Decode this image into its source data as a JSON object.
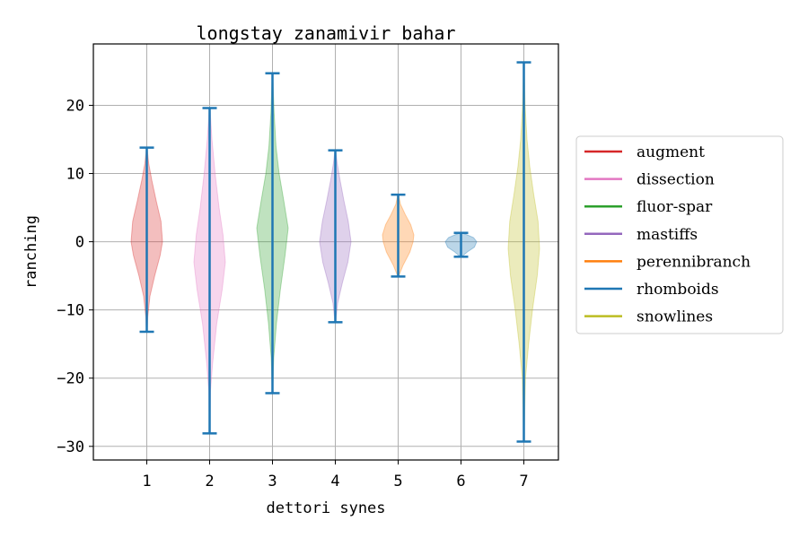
{
  "chart_data": {
    "type": "violin",
    "title": "longstay zanamivir bahar",
    "xlabel": "dettori synes",
    "ylabel": "ranching",
    "categories": [
      "1",
      "2",
      "3",
      "4",
      "5",
      "6",
      "7"
    ],
    "ylim": [
      -32,
      29
    ],
    "yticks": [
      -30,
      -20,
      -10,
      0,
      10,
      20
    ],
    "grid": true,
    "legend_position": "right",
    "series": [
      {
        "name": "augment",
        "color": "#d62728",
        "position": 1,
        "min": -13.2,
        "max": 13.8,
        "profile": [
          [
            -13.2,
            0.02
          ],
          [
            -11,
            0.06
          ],
          [
            -8,
            0.2
          ],
          [
            -5,
            0.5
          ],
          [
            -2,
            0.85
          ],
          [
            0,
            1.0
          ],
          [
            3,
            0.9
          ],
          [
            6,
            0.6
          ],
          [
            9,
            0.32
          ],
          [
            11.5,
            0.12
          ],
          [
            13.8,
            0.02
          ]
        ]
      },
      {
        "name": "dissection",
        "color": "#e377c2",
        "position": 2,
        "min": -28.1,
        "max": 19.6,
        "profile": [
          [
            -28.1,
            0.01
          ],
          [
            -22,
            0.05
          ],
          [
            -18,
            0.18
          ],
          [
            -12,
            0.45
          ],
          [
            -7,
            0.8
          ],
          [
            -3,
            1.0
          ],
          [
            1,
            0.85
          ],
          [
            5,
            0.6
          ],
          [
            10,
            0.35
          ],
          [
            15,
            0.15
          ],
          [
            19.6,
            0.02
          ]
        ]
      },
      {
        "name": "fluor-spar",
        "color": "#2ca02c",
        "position": 3,
        "min": -22.2,
        "max": 24.7,
        "profile": [
          [
            -22.2,
            0.01
          ],
          [
            -17,
            0.08
          ],
          [
            -12,
            0.25
          ],
          [
            -7,
            0.5
          ],
          [
            -2,
            0.8
          ],
          [
            2,
            1.0
          ],
          [
            6,
            0.72
          ],
          [
            10,
            0.42
          ],
          [
            14,
            0.22
          ],
          [
            19,
            0.1
          ],
          [
            24.7,
            0.01
          ]
        ]
      },
      {
        "name": "mastiffs",
        "color": "#9467bd",
        "position": 4,
        "min": -11.8,
        "max": 13.4,
        "profile": [
          [
            -11.8,
            0.02
          ],
          [
            -9,
            0.15
          ],
          [
            -6,
            0.45
          ],
          [
            -3,
            0.8
          ],
          [
            0,
            1.0
          ],
          [
            3,
            0.82
          ],
          [
            6,
            0.55
          ],
          [
            9,
            0.3
          ],
          [
            11.5,
            0.12
          ],
          [
            13.4,
            0.02
          ]
        ]
      },
      {
        "name": "perennibranch",
        "color": "#ff7f0e",
        "position": 5,
        "min": -5.1,
        "max": 6.9,
        "profile": [
          [
            -5.1,
            0.02
          ],
          [
            -3.5,
            0.3
          ],
          [
            -1.5,
            0.75
          ],
          [
            0,
            0.95
          ],
          [
            1,
            1.0
          ],
          [
            2.5,
            0.8
          ],
          [
            4,
            0.45
          ],
          [
            5.5,
            0.15
          ],
          [
            6.9,
            0.02
          ]
        ]
      },
      {
        "name": "rhomboids",
        "color": "#1f77b4",
        "position": 6,
        "min": -2.2,
        "max": 1.3,
        "profile": [
          [
            -2.2,
            0.05
          ],
          [
            -1.5,
            0.4
          ],
          [
            -0.8,
            0.85
          ],
          [
            0,
            1.0
          ],
          [
            0.6,
            0.8
          ],
          [
            1.0,
            0.4
          ],
          [
            1.3,
            0.05
          ]
        ]
      },
      {
        "name": "snowlines",
        "color": "#bcbd22",
        "position": 7,
        "min": -29.3,
        "max": 26.3,
        "profile": [
          [
            -29.3,
            0.01
          ],
          [
            -20,
            0.1
          ],
          [
            -15,
            0.3
          ],
          [
            -10,
            0.55
          ],
          [
            -5,
            0.85
          ],
          [
            -1,
            1.0
          ],
          [
            3,
            0.9
          ],
          [
            7,
            0.62
          ],
          [
            11,
            0.38
          ],
          [
            15,
            0.2
          ],
          [
            20,
            0.08
          ],
          [
            26.3,
            0.01
          ]
        ]
      }
    ],
    "extrema_line_color": "#1f77b4"
  }
}
